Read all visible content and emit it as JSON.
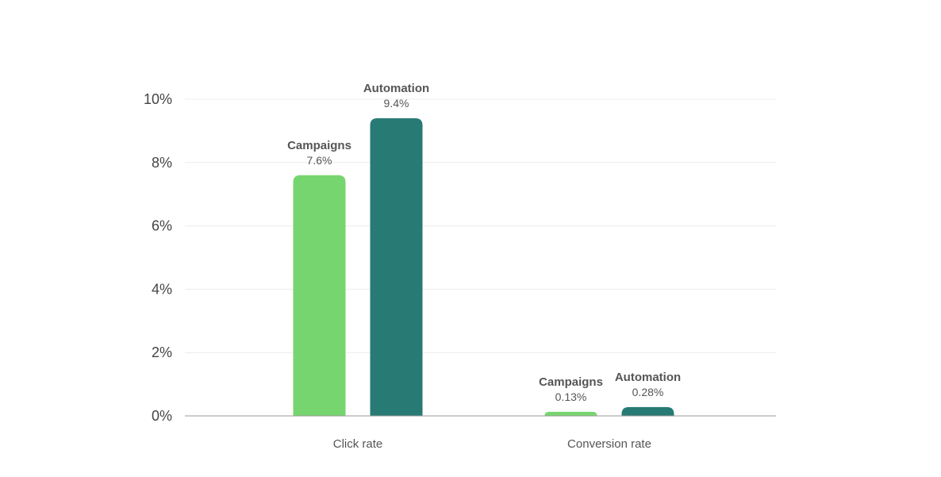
{
  "chart_data": {
    "type": "bar",
    "title": "",
    "xlabel": "",
    "ylabel": "",
    "categories": [
      "Click rate",
      "Conversion rate"
    ],
    "series": [
      {
        "name": "Campaigns",
        "values": [
          7.6,
          0.13
        ],
        "value_labels": [
          "7.6%",
          "0.13%"
        ],
        "color": "#76d56e"
      },
      {
        "name": "Automation",
        "values": [
          9.4,
          0.28
        ],
        "value_labels": [
          "9.4%",
          "0.28%"
        ],
        "color": "#287a74"
      }
    ],
    "ylim": [
      0,
      10
    ],
    "yticks": [
      0,
      2,
      4,
      6,
      8,
      10
    ],
    "ytick_labels": [
      "0%",
      "2%",
      "4%",
      "6%",
      "8%",
      "10%"
    ],
    "grid": true,
    "legend": "none",
    "unit": "%"
  }
}
